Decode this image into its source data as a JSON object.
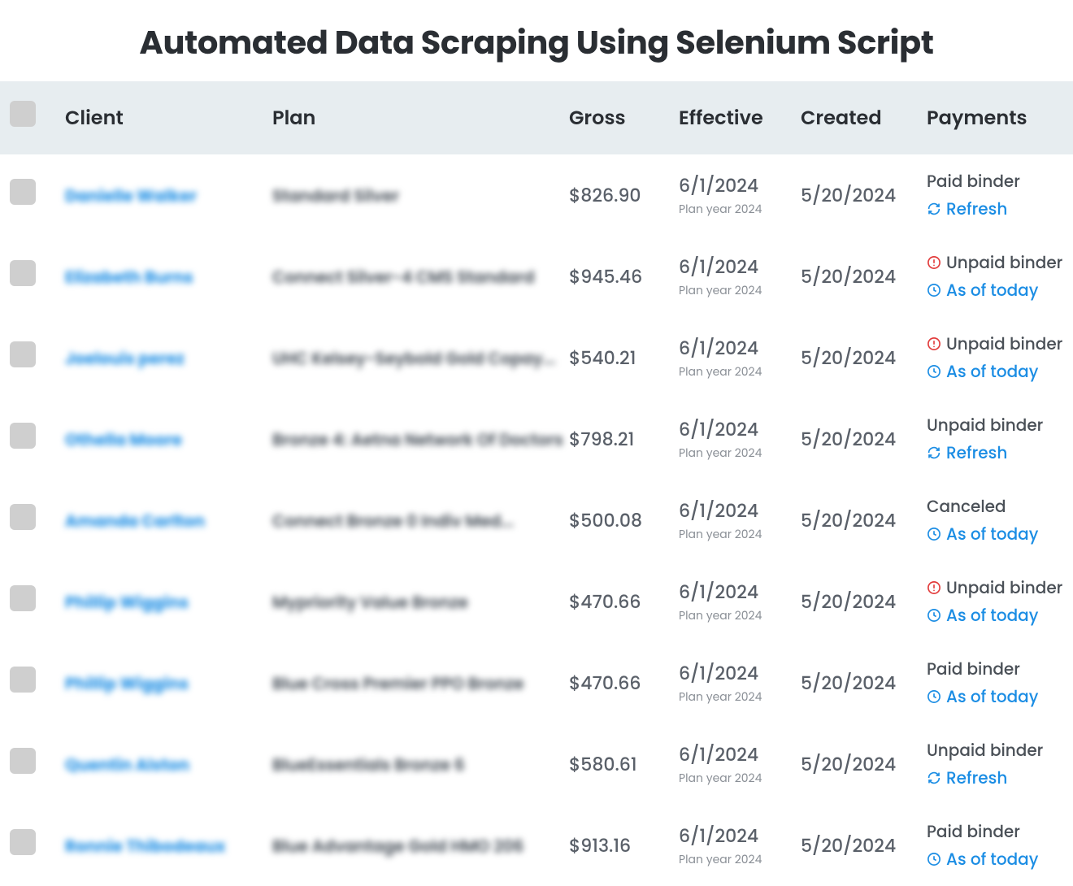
{
  "title": "Automated Data Scraping Using Selenium Script",
  "columns": {
    "client": "Client",
    "plan": "Plan",
    "gross": "Gross",
    "effective": "Effective",
    "created": "Created",
    "payments": "Payments"
  },
  "action_labels": {
    "refresh": "Refresh",
    "as_of_today": "As of today"
  },
  "colors": {
    "header_bg": "#e7edf0",
    "text_primary": "#2a2e33",
    "text_secondary": "#5a6069",
    "text_muted": "#8a8f96",
    "link": "#1b8de4",
    "alert": "#e23b3b",
    "checkbox": "#cfcfcf"
  },
  "rows": [
    {
      "client": "Danielle Walker",
      "plan": "Standard Silver",
      "gross": "$826.90",
      "effective_date": "6/1/2024",
      "effective_year": "Plan year 2024",
      "created": "5/20/2024",
      "status": "Paid binder",
      "status_alert": false,
      "action": "refresh"
    },
    {
      "client": "Elizabeth Burns",
      "plan": "Connect Silver-4 CMS Standard",
      "gross": "$945.46",
      "effective_date": "6/1/2024",
      "effective_year": "Plan year 2024",
      "created": "5/20/2024",
      "status": "Unpaid binder",
      "status_alert": true,
      "action": "as_of_today"
    },
    {
      "client": "Joelouis perez",
      "plan": "UHC Kelsey-Seybold Gold Copay...",
      "gross": "$540.21",
      "effective_date": "6/1/2024",
      "effective_year": "Plan year 2024",
      "created": "5/20/2024",
      "status": "Unpaid binder",
      "status_alert": true,
      "action": "as_of_today"
    },
    {
      "client": "Othella Moore",
      "plan": "Bronze 4: Aetna Network Of Doctors",
      "gross": "$798.21",
      "effective_date": "6/1/2024",
      "effective_year": "Plan year 2024",
      "created": "5/20/2024",
      "status": "Unpaid binder",
      "status_alert": false,
      "action": "refresh"
    },
    {
      "client": "Amanda Carlton",
      "plan": "Connect Bronze 0 Indiv Med...",
      "gross": "$500.08",
      "effective_date": "6/1/2024",
      "effective_year": "Plan year 2024",
      "created": "5/20/2024",
      "status": "Canceled",
      "status_alert": false,
      "action": "as_of_today"
    },
    {
      "client": "Phillip Wiggins",
      "plan": "Mypriority Value Bronze",
      "gross": "$470.66",
      "effective_date": "6/1/2024",
      "effective_year": "Plan year 2024",
      "created": "5/20/2024",
      "status": "Unpaid binder",
      "status_alert": true,
      "action": "as_of_today"
    },
    {
      "client": "Phillip Wiggins",
      "plan": "Blue Cross Premier PPO Bronze",
      "gross": "$470.66",
      "effective_date": "6/1/2024",
      "effective_year": "Plan year 2024",
      "created": "5/20/2024",
      "status": "Paid binder",
      "status_alert": false,
      "action": "as_of_today"
    },
    {
      "client": "Quentin Alston",
      "plan": "BlueEssentials Bronze 6",
      "gross": "$580.61",
      "effective_date": "6/1/2024",
      "effective_year": "Plan year 2024",
      "created": "5/20/2024",
      "status": "Unpaid binder",
      "status_alert": false,
      "action": "refresh"
    },
    {
      "client": "Ronnie Thibodeaux",
      "plan": "Blue Advantage Gold HMO 206",
      "gross": "$913.16",
      "effective_date": "6/1/2024",
      "effective_year": "Plan year 2024",
      "created": "5/20/2024",
      "status": "Paid binder",
      "status_alert": false,
      "action": "as_of_today"
    }
  ]
}
